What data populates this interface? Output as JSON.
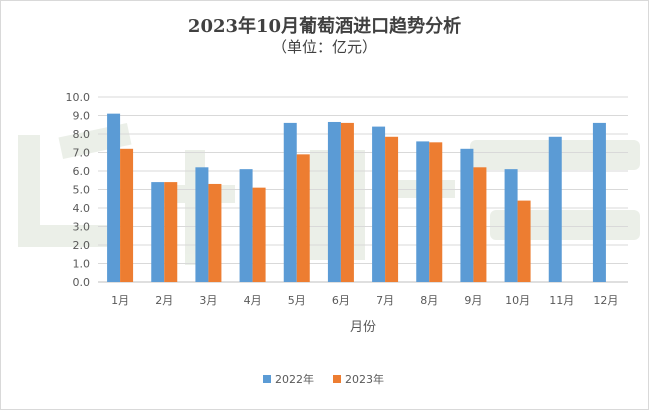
{
  "chart_data": {
    "type": "bar",
    "title": "2023年10月葡萄酒进口趋势分析",
    "subtitle": "（单位：亿元）",
    "xlabel": "月份",
    "ylabel": "",
    "ylim": [
      0,
      10
    ],
    "ytick_step": 1,
    "ytick_labels": [
      "0.0",
      "1.0",
      "2.0",
      "3.0",
      "4.0",
      "5.0",
      "6.0",
      "7.0",
      "8.0",
      "9.0",
      "10.0"
    ],
    "grid": true,
    "legend_position": "bottom",
    "categories": [
      "1月",
      "2月",
      "3月",
      "4月",
      "5月",
      "6月",
      "7月",
      "8月",
      "9月",
      "10月",
      "11月",
      "12月"
    ],
    "series": [
      {
        "name": "2022年",
        "color": "#5b9bd5",
        "values": [
          9.1,
          5.4,
          6.2,
          6.1,
          8.6,
          8.65,
          8.4,
          7.6,
          7.2,
          6.1,
          7.85,
          8.6
        ]
      },
      {
        "name": "2023年",
        "color": "#ed7d31",
        "values": [
          7.2,
          5.4,
          5.3,
          5.1,
          6.9,
          8.6,
          7.85,
          7.55,
          6.2,
          4.4,
          null,
          null
        ]
      }
    ]
  }
}
